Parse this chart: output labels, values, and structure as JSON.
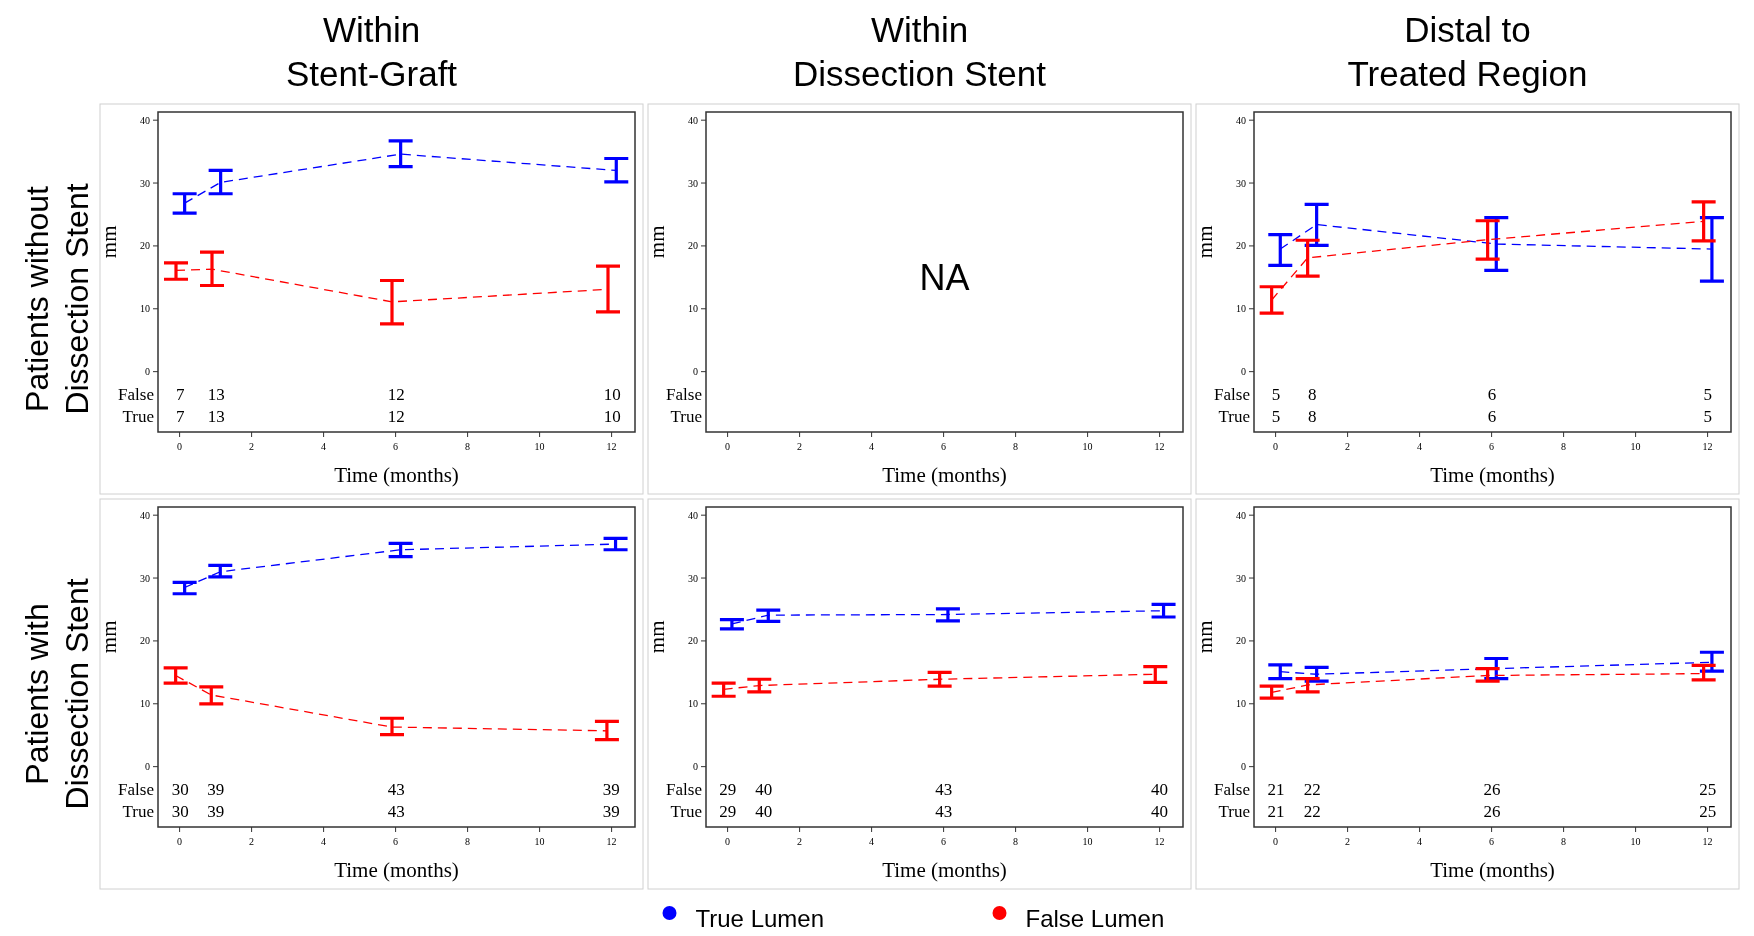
{
  "chart_data": [
    {
      "type": "line",
      "title": "Within\nStent-Graft",
      "xlabel": "Time (months)",
      "ylabel": "mm",
      "xlim": [
        -0.6,
        12.65
      ],
      "ylim": [
        -9.6,
        41.3
      ],
      "xticks": [
        0,
        2,
        4,
        6,
        8,
        10,
        12
      ],
      "yticks": [
        0,
        10,
        20,
        30,
        40
      ],
      "line_style": "dashed",
      "series": [
        {
          "color": "#0000ff",
          "x": [
            0.14,
            1.14,
            6.14,
            12.13
          ],
          "values": [
            26.8,
            30.1,
            34.6,
            32.0
          ],
          "errors": [
            [
              25.2,
              28.3
            ],
            [
              28.3,
              32.0
            ],
            [
              32.6,
              36.7
            ],
            [
              30.2,
              33.9
            ]
          ]
        },
        {
          "color": "#ff0000",
          "x": [
            -0.1,
            0.9,
            5.9,
            11.9
          ],
          "values": [
            16.1,
            16.3,
            11.1,
            13.1
          ],
          "errors": [
            [
              14.7,
              17.3
            ],
            [
              13.7,
              19.0
            ],
            [
              7.6,
              14.5
            ],
            [
              9.5,
              16.8
            ]
          ]
        }
      ],
      "annotations": [
        "Patients without\nDissection Stent",
        "False",
        "True",
        "7",
        "13",
        "12",
        "10",
        "7",
        "13",
        "12",
        "10"
      ]
    },
    {
      "type": "line",
      "title": "Within\nDissection Stent",
      "xlabel": "Time (months)",
      "ylabel": "mm",
      "xlim": [
        -0.6,
        12.65
      ],
      "ylim": [
        -9.6,
        41.3
      ],
      "xticks": [
        0,
        2,
        4,
        6,
        8,
        10,
        12
      ],
      "yticks": [
        0,
        10,
        20,
        30,
        40
      ],
      "annotations": [
        "False",
        "True",
        "NA"
      ]
    },
    {
      "type": "line",
      "title": "Distal to\nTreated Region",
      "xlabel": "Time (months)",
      "ylabel": "mm",
      "xlim": [
        -0.6,
        12.65
      ],
      "ylim": [
        -9.6,
        41.3
      ],
      "xticks": [
        0,
        2,
        4,
        6,
        8,
        10,
        12
      ],
      "yticks": [
        0,
        10,
        20,
        30,
        40
      ],
      "line_style": "dashed",
      "series": [
        {
          "color": "#0000ff",
          "x": [
            0.13,
            1.14,
            6.13,
            12.12
          ],
          "values": [
            19.5,
            23.4,
            20.3,
            19.5
          ],
          "errors": [
            [
              16.9,
              21.8
            ],
            [
              20.1,
              26.6
            ],
            [
              16.1,
              24.5
            ],
            [
              14.4,
              24.5
            ]
          ]
        },
        {
          "color": "#ff0000",
          "x": [
            -0.11,
            0.89,
            5.89,
            11.89
          ],
          "values": [
            11.4,
            18.1,
            21.0,
            23.9
          ],
          "errors": [
            [
              9.3,
              13.5
            ],
            [
              15.2,
              20.9
            ],
            [
              17.9,
              24.0
            ],
            [
              20.8,
              27.0
            ]
          ]
        }
      ],
      "annotations": [
        "False",
        "True",
        "5",
        "8",
        "6",
        "5",
        "5",
        "8",
        "6",
        "5"
      ]
    },
    {
      "type": "line",
      "xlabel": "Time (months)",
      "ylabel": "mm",
      "xlim": [
        -0.6,
        12.65
      ],
      "ylim": [
        -9.6,
        41.3
      ],
      "xticks": [
        0,
        2,
        4,
        6,
        8,
        10,
        12
      ],
      "yticks": [
        0,
        10,
        20,
        30,
        40
      ],
      "line_style": "dashed",
      "series": [
        {
          "color": "#0000ff",
          "x": [
            0.14,
            1.13,
            6.14,
            12.11
          ],
          "values": [
            28.5,
            31.0,
            34.5,
            35.4
          ],
          "errors": [
            [
              27.5,
              29.3
            ],
            [
              30.2,
              32.0
            ],
            [
              33.4,
              35.5
            ],
            [
              34.5,
              36.3
            ]
          ]
        },
        {
          "color": "#ff0000",
          "x": [
            -0.11,
            0.88,
            5.9,
            11.87
          ],
          "values": [
            14.5,
            11.4,
            6.3,
            5.7
          ],
          "errors": [
            [
              13.3,
              15.7
            ],
            [
              10.0,
              12.7
            ],
            [
              5.1,
              7.7
            ],
            [
              4.3,
              7.2
            ]
          ]
        }
      ],
      "annotations": [
        "Patients with\nDissection Stent",
        "False",
        "True",
        "30",
        "39",
        "43",
        "39",
        "30",
        "39",
        "43",
        "39"
      ]
    },
    {
      "type": "line",
      "xlabel": "Time (months)",
      "ylabel": "mm",
      "xlim": [
        -0.6,
        12.65
      ],
      "ylim": [
        -9.6,
        41.3
      ],
      "xticks": [
        0,
        2,
        4,
        6,
        8,
        10,
        12
      ],
      "yticks": [
        0,
        10,
        20,
        30,
        40
      ],
      "line_style": "dashed",
      "legend": "bottom",
      "series": [
        {
          "name": "True Lumen",
          "color": "#0000ff",
          "x": [
            0.12,
            1.13,
            6.12,
            12.11
          ],
          "values": [
            22.7,
            24.1,
            24.2,
            24.8
          ],
          "errors": [
            [
              21.9,
              23.4
            ],
            [
              23.1,
              24.9
            ],
            [
              23.2,
              25.1
            ],
            [
              23.8,
              25.8
            ]
          ]
        },
        {
          "name": "False Lumen",
          "color": "#ff0000",
          "x": [
            -0.11,
            0.88,
            5.89,
            11.88
          ],
          "values": [
            12.3,
            12.9,
            13.9,
            14.7
          ],
          "errors": [
            [
              11.2,
              13.3
            ],
            [
              11.9,
              13.9
            ],
            [
              12.8,
              15.0
            ],
            [
              13.4,
              15.9
            ]
          ]
        }
      ],
      "annotations": [
        "False",
        "True",
        "29",
        "40",
        "43",
        "40",
        "29",
        "40",
        "43",
        "40"
      ]
    },
    {
      "type": "line",
      "xlabel": "Time (months)",
      "ylabel": "mm",
      "xlim": [
        -0.6,
        12.65
      ],
      "ylim": [
        -9.6,
        41.3
      ],
      "xticks": [
        0,
        2,
        4,
        6,
        8,
        10,
        12
      ],
      "yticks": [
        0,
        10,
        20,
        30,
        40
      ],
      "line_style": "dashed",
      "series": [
        {
          "color": "#0000ff",
          "x": [
            0.13,
            1.14,
            6.13,
            12.12
          ],
          "values": [
            15.1,
            14.7,
            15.6,
            16.6
          ],
          "errors": [
            [
              14.0,
              16.2
            ],
            [
              13.6,
              15.8
            ],
            [
              14.0,
              17.2
            ],
            [
              15.2,
              18.2
            ]
          ]
        },
        {
          "color": "#ff0000",
          "x": [
            -0.11,
            0.89,
            5.89,
            11.89
          ],
          "values": [
            11.8,
            13.0,
            14.5,
            14.8
          ],
          "errors": [
            [
              10.9,
              12.8
            ],
            [
              11.9,
              14.0
            ],
            [
              13.6,
              15.6
            ],
            [
              13.8,
              16.1
            ]
          ]
        }
      ],
      "annotations": [
        "False",
        "True",
        "21",
        "22",
        "26",
        "25",
        "21",
        "22",
        "26",
        "25"
      ]
    }
  ]
}
